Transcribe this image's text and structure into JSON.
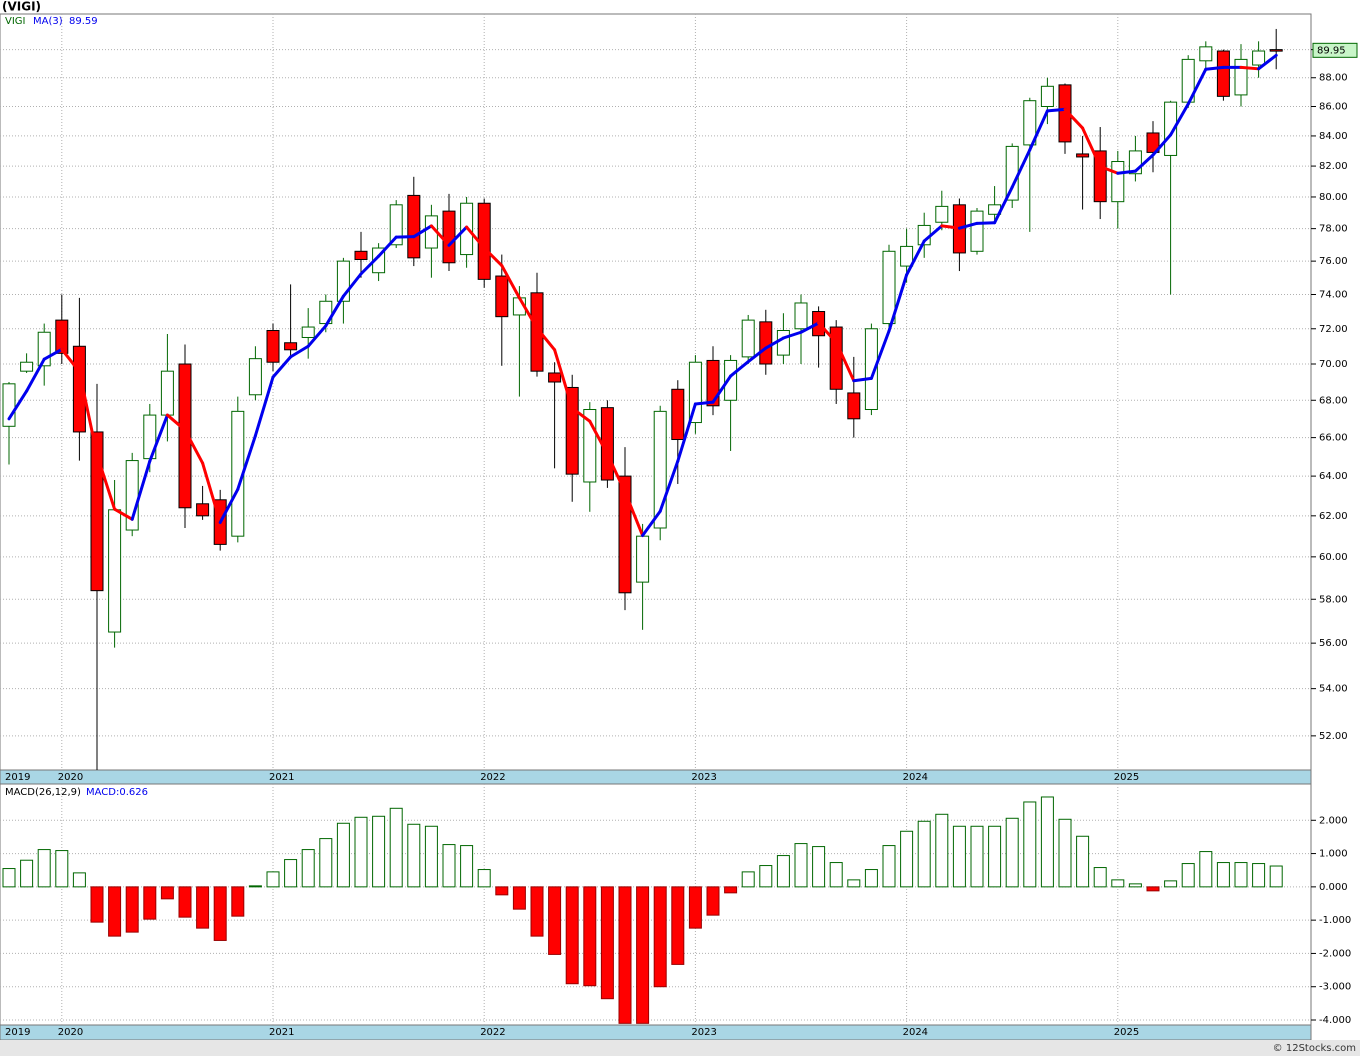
{
  "chart_data": [
    {
      "type": "candlestick",
      "title": "(VIGI)",
      "symbol": "VIGI",
      "ma_name": "MA(3)",
      "categories": [
        "2019",
        null,
        null,
        "2020",
        null,
        null,
        null,
        null,
        null,
        null,
        null,
        null,
        null,
        null,
        null,
        "2021",
        null,
        null,
        null,
        null,
        null,
        null,
        null,
        null,
        null,
        null,
        null,
        "2022",
        null,
        null,
        null,
        null,
        null,
        null,
        null,
        null,
        null,
        null,
        null,
        "2023",
        null,
        null,
        null,
        null,
        null,
        null,
        null,
        null,
        null,
        null,
        null,
        "2024",
        null,
        null,
        null,
        null,
        null,
        null,
        null,
        null,
        null,
        null,
        null,
        "2025",
        null,
        null,
        null,
        null,
        null,
        null,
        null,
        null,
        null
      ],
      "open": [
        66.6,
        69.6,
        69.9,
        72.5,
        71.0,
        66.3,
        56.5,
        61.3,
        64.9,
        67.2,
        70.0,
        62.6,
        62.8,
        61.0,
        68.3,
        71.9,
        71.2,
        71.5,
        72.3,
        73.6,
        76.6,
        75.3,
        77.0,
        80.1,
        76.8,
        79.1,
        76.4,
        79.6,
        75.1,
        72.8,
        74.1,
        69.5,
        68.7,
        63.7,
        67.6,
        64.0,
        58.8,
        61.4,
        68.6,
        66.8,
        70.2,
        68.0,
        70.4,
        72.4,
        70.5,
        72.0,
        73.0,
        72.1,
        68.4,
        67.5,
        72.3,
        75.7,
        77.0,
        78.4,
        79.5,
        76.6,
        78.9,
        79.8,
        83.4,
        86.0,
        87.5,
        82.8,
        83.0,
        79.7,
        81.5,
        84.2,
        82.7,
        86.3,
        89.2,
        89.9,
        86.8,
        88.9,
        90.0
      ],
      "high": [
        69.0,
        70.6,
        72.3,
        74.0,
        73.8,
        68.9,
        63.8,
        65.2,
        67.8,
        71.7,
        71.1,
        63.5,
        63.3,
        68.2,
        71.0,
        72.3,
        74.6,
        73.2,
        74.0,
        76.2,
        77.8,
        77.1,
        79.8,
        81.3,
        79.5,
        80.2,
        80.0,
        79.9,
        76.4,
        74.5,
        75.3,
        70.1,
        69.4,
        67.9,
        68.0,
        65.5,
        61.6,
        67.7,
        69.1,
        70.5,
        71.0,
        70.5,
        72.8,
        73.1,
        72.9,
        74.0,
        73.3,
        72.5,
        70.4,
        72.3,
        77.0,
        78.0,
        79.0,
        80.4,
        79.9,
        79.3,
        80.7,
        83.5,
        86.6,
        88.0,
        87.6,
        84.0,
        84.6,
        83.0,
        84.0,
        85.0,
        86.4,
        89.6,
        90.6,
        90.0,
        90.4,
        90.6,
        91.5
      ],
      "low": [
        64.6,
        69.5,
        68.8,
        70.0,
        64.8,
        50.6,
        55.8,
        61.0,
        64.2,
        65.8,
        61.4,
        61.8,
        60.3,
        60.7,
        68.0,
        69.6,
        70.3,
        70.3,
        71.8,
        72.3,
        75.0,
        74.8,
        76.8,
        75.7,
        75.0,
        75.4,
        75.6,
        74.4,
        69.9,
        68.2,
        69.3,
        64.4,
        62.7,
        62.2,
        63.4,
        57.5,
        56.6,
        60.8,
        63.6,
        66.2,
        67.2,
        65.3,
        70.0,
        69.4,
        70.0,
        70.0,
        69.8,
        67.8,
        66.0,
        67.2,
        72.0,
        74.7,
        76.2,
        77.9,
        75.4,
        76.4,
        78.5,
        79.3,
        77.8,
        84.8,
        82.8,
        79.2,
        78.6,
        78.0,
        81.0,
        81.6,
        74.0,
        85.9,
        88.5,
        86.4,
        86.0,
        88.0,
        88.6
      ],
      "close": [
        68.9,
        70.1,
        71.8,
        70.6,
        66.3,
        58.4,
        62.3,
        64.8,
        67.2,
        69.6,
        62.4,
        62.0,
        60.6,
        67.4,
        70.3,
        70.1,
        70.8,
        72.1,
        73.6,
        76.0,
        76.1,
        76.8,
        79.5,
        76.2,
        78.8,
        75.9,
        79.6,
        74.9,
        72.7,
        73.8,
        69.6,
        69.0,
        64.1,
        67.5,
        63.8,
        58.3,
        61.0,
        67.4,
        65.9,
        70.1,
        67.7,
        70.2,
        72.5,
        70.0,
        71.9,
        73.5,
        71.6,
        68.6,
        67.0,
        72.0,
        76.6,
        76.9,
        78.2,
        79.4,
        76.5,
        79.1,
        79.5,
        83.3,
        86.4,
        87.4,
        83.6,
        82.6,
        79.7,
        82.3,
        83.0,
        82.9,
        86.3,
        89.3,
        90.2,
        86.7,
        89.3,
        89.9,
        89.95
      ],
      "ma": [
        67.0,
        68.5,
        70.27,
        70.83,
        69.57,
        65.1,
        62.33,
        61.83,
        64.77,
        67.2,
        66.4,
        64.67,
        61.67,
        63.33,
        66.1,
        69.27,
        70.4,
        71.0,
        72.17,
        73.9,
        75.23,
        76.3,
        77.47,
        77.5,
        78.17,
        76.97,
        78.1,
        76.8,
        75.73,
        73.8,
        72.03,
        70.8,
        67.57,
        66.87,
        65.13,
        63.2,
        61.03,
        62.23,
        64.77,
        67.8,
        67.9,
        69.33,
        70.13,
        70.9,
        71.47,
        71.8,
        72.33,
        71.23,
        69.07,
        69.2,
        71.87,
        75.17,
        77.23,
        78.17,
        78.03,
        78.33,
        78.37,
        80.63,
        83.07,
        85.7,
        85.8,
        84.53,
        81.97,
        81.53,
        81.67,
        82.73,
        84.07,
        86.17,
        88.6,
        88.73,
        88.73,
        88.63,
        89.59
      ],
      "up_color": "#006600",
      "down_color": "#ff0000",
      "ma_up_color": "#0000ee",
      "ma_down_color": "#ff0000",
      "ylim": [
        50.6,
        92.6
      ],
      "log_scale": true,
      "yticks": [
        {
          "value": 52,
          "label": "52.00"
        },
        {
          "value": 54,
          "label": "54.00"
        },
        {
          "value": 56,
          "label": "56.00"
        },
        {
          "value": 58,
          "label": "58.00"
        },
        {
          "value": 60,
          "label": "60.00"
        },
        {
          "value": 62,
          "label": "62.00"
        },
        {
          "value": 64,
          "label": "64.00"
        },
        {
          "value": 66,
          "label": "66.00"
        },
        {
          "value": 68,
          "label": "68.00"
        },
        {
          "value": 70,
          "label": "70.00"
        },
        {
          "value": 72,
          "label": "72.00"
        },
        {
          "value": 74,
          "label": "74.00"
        },
        {
          "value": 76,
          "label": "76.00"
        },
        {
          "value": 78,
          "label": "78.00"
        },
        {
          "value": 80,
          "label": "80.00"
        },
        {
          "value": 82,
          "label": "82.00"
        },
        {
          "value": 84,
          "label": "84.00"
        },
        {
          "value": 86,
          "label": "86.00"
        },
        {
          "value": 88,
          "label": "88.00"
        },
        {
          "value": 90,
          "label": "90.00"
        }
      ],
      "grid": true
    },
    {
      "type": "bar",
      "title": "MACD(26,12,9)",
      "legend": "MACD:0.626",
      "values": [
        0.55,
        0.8,
        1.12,
        1.09,
        0.42,
        -1.06,
        -1.48,
        -1.36,
        -0.97,
        -0.36,
        -0.91,
        -1.24,
        -1.61,
        -0.88,
        0.03,
        0.45,
        0.82,
        1.12,
        1.45,
        1.91,
        2.09,
        2.12,
        2.36,
        1.88,
        1.82,
        1.27,
        1.24,
        0.52,
        -0.24,
        -0.67,
        -1.48,
        -2.03,
        -2.91,
        -2.97,
        -3.36,
        -4.1,
        -4.1,
        -3.0,
        -2.33,
        -1.24,
        -0.85,
        -0.18,
        0.45,
        0.64,
        0.94,
        1.3,
        1.21,
        0.73,
        0.21,
        0.52,
        1.24,
        1.67,
        1.97,
        2.18,
        1.82,
        1.82,
        1.82,
        2.06,
        2.55,
        2.7,
        2.03,
        1.52,
        0.58,
        0.21,
        0.09,
        -0.12,
        0.18,
        0.7,
        1.06,
        0.73,
        0.73,
        0.7,
        0.626
      ],
      "up_color": "#006600",
      "down_color": "#ff0000",
      "ylim": [
        -4.15,
        3.09
      ],
      "yticks": [
        {
          "value": -4,
          "label": "-4.000"
        },
        {
          "value": -3,
          "label": "-3.000"
        },
        {
          "value": -2,
          "label": "-2.000"
        },
        {
          "value": -1,
          "label": "-1.000"
        },
        {
          "value": 0,
          "label": "0.000"
        },
        {
          "value": 1,
          "label": "1.000"
        },
        {
          "value": 2,
          "label": "2.000"
        }
      ],
      "grid": true
    }
  ],
  "footer": "© 12Stocks.com"
}
